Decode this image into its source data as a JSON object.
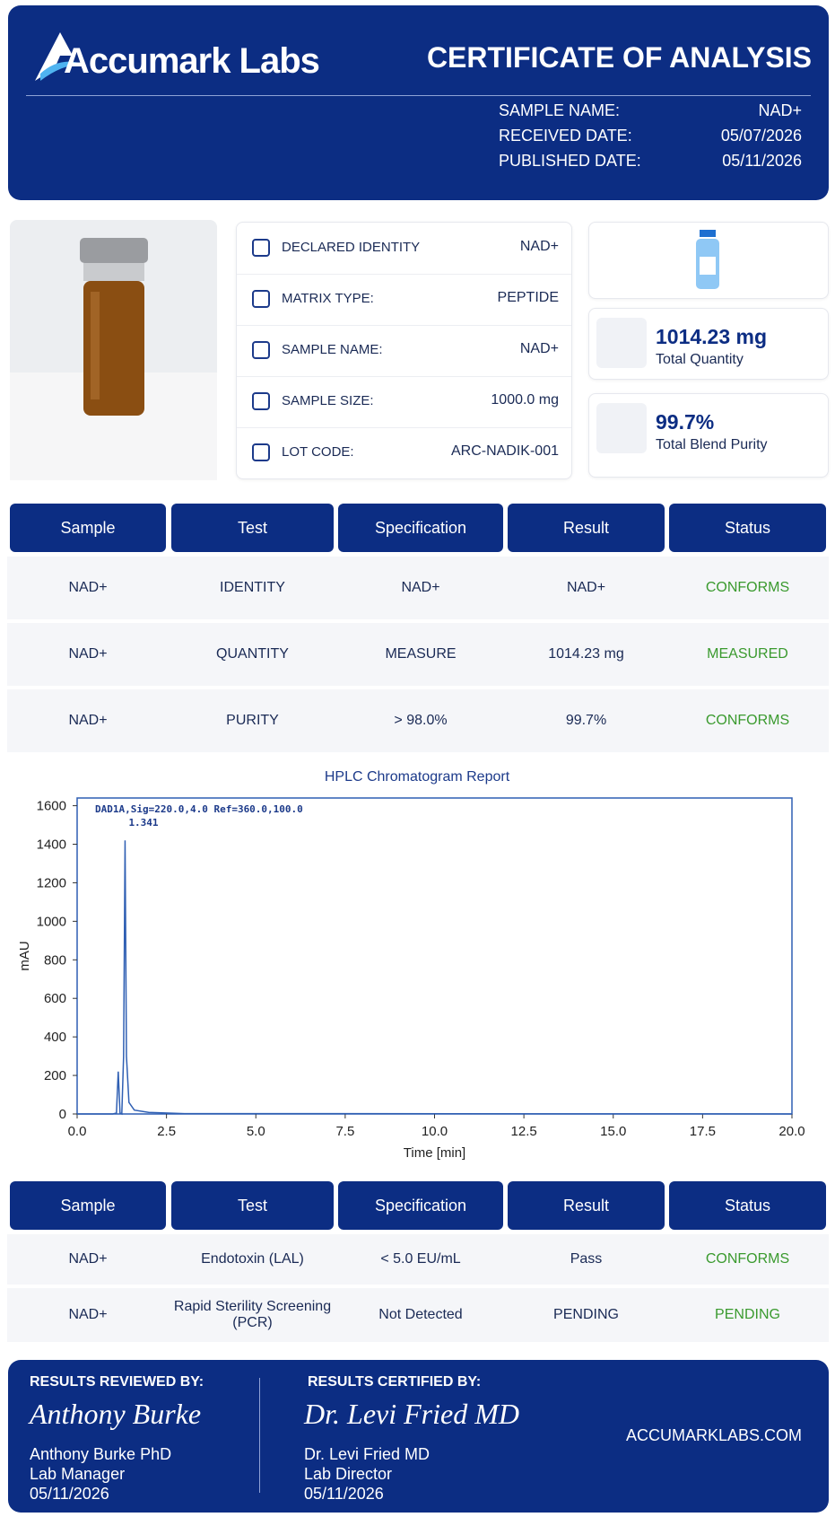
{
  "header": {
    "logo": "Accumark Labs",
    "title": "CERTIFICATE OF ANALYSIS",
    "rows": [
      {
        "label": "SAMPLE NAME:",
        "value": "NAD+"
      },
      {
        "label": "RECEIVED DATE:",
        "value": "05/07/2026"
      },
      {
        "label": "PUBLISHED DATE:",
        "value": "05/11/2026"
      }
    ]
  },
  "info": {
    "rows": [
      {
        "label": "DECLARED IDENTITY",
        "value": "NAD+"
      },
      {
        "label": "MATRIX TYPE:",
        "value": "PEPTIDE"
      },
      {
        "label": "SAMPLE NAME:",
        "value": "NAD+"
      },
      {
        "label": "SAMPLE SIZE:",
        "value": "1000.0 mg"
      },
      {
        "label": "LOT CODE:",
        "value": "ARC-NADIK-001"
      }
    ]
  },
  "stats": [
    {
      "value": "1014.23 mg",
      "label": "Total Quantity"
    },
    {
      "value": "99.7%",
      "label": "Total Blend Purity"
    }
  ],
  "table1": {
    "header": [
      "Sample",
      "Test",
      "Specification",
      "Result",
      "Status"
    ],
    "rows": [
      [
        "NAD+",
        "IDENTITY",
        "NAD+",
        "NAD+",
        "CONFORMS"
      ],
      [
        "NAD+",
        "QUANTITY",
        "MEASURE",
        "1014.23 mg",
        "MEASURED"
      ],
      [
        "NAD+",
        "PURITY",
        "> 98.0%",
        "99.7%",
        "CONFORMS"
      ]
    ]
  },
  "chart_data": {
    "type": "line",
    "title": "HPLC Chromatogram Report",
    "x_label": "Time [min]",
    "y_label": "mAU",
    "annotation": "DAD1A,Sig=220.0,4.0 Ref=360.0,100.0",
    "peak_label": "1.341",
    "color": "#2f5fb3",
    "x": [
      0,
      1.0,
      1.1,
      1.15,
      1.2,
      1.25,
      1.3,
      1.341,
      1.38,
      1.45,
      1.6,
      2.0,
      3.0,
      20
    ],
    "values": [
      0,
      0,
      5,
      220,
      5,
      0,
      300,
      1420,
      300,
      60,
      20,
      8,
      2,
      0
    ],
    "xlim": [
      0,
      20
    ],
    "ylim": [
      0,
      1640
    ],
    "xticks": [
      {
        "value": 0,
        "label": "0.0"
      },
      2.5,
      {
        "value": 5,
        "label": "5.0"
      },
      7.5,
      {
        "value": 10,
        "label": "10.0"
      },
      12.5,
      {
        "value": 15,
        "label": "15.0"
      },
      17.5,
      {
        "value": 20,
        "label": "20.0"
      }
    ],
    "yticks": [
      0,
      200,
      400,
      600,
      800,
      1000,
      1200,
      1400,
      1600
    ]
  },
  "table2": {
    "header": [
      "Sample",
      "Test",
      "Specification",
      "Result",
      "Status"
    ],
    "rows": [
      [
        "NAD+",
        "Endotoxin (LAL)",
        "< 5.0 EU/mL",
        "Pass",
        "CONFORMS"
      ],
      [
        "NAD+",
        "Rapid Sterility Screening (PCR)",
        "Not Detected",
        "PENDING",
        "PENDING"
      ]
    ]
  },
  "footer": {
    "reviewed": {
      "heading": "RESULTS REVIEWED BY:",
      "signature": "Anthony Burke",
      "name": "Anthony Burke PhD",
      "role": "Lab Manager",
      "date": "05/11/2026"
    },
    "certified": {
      "heading": "RESULTS CERTIFIED BY:",
      "signature": "Dr. Levi Fried MD",
      "name": "Dr. Levi Fried MD",
      "role": "Lab Director",
      "date": "05/11/2026"
    },
    "website": "ACCUMARKLABS.COM"
  }
}
